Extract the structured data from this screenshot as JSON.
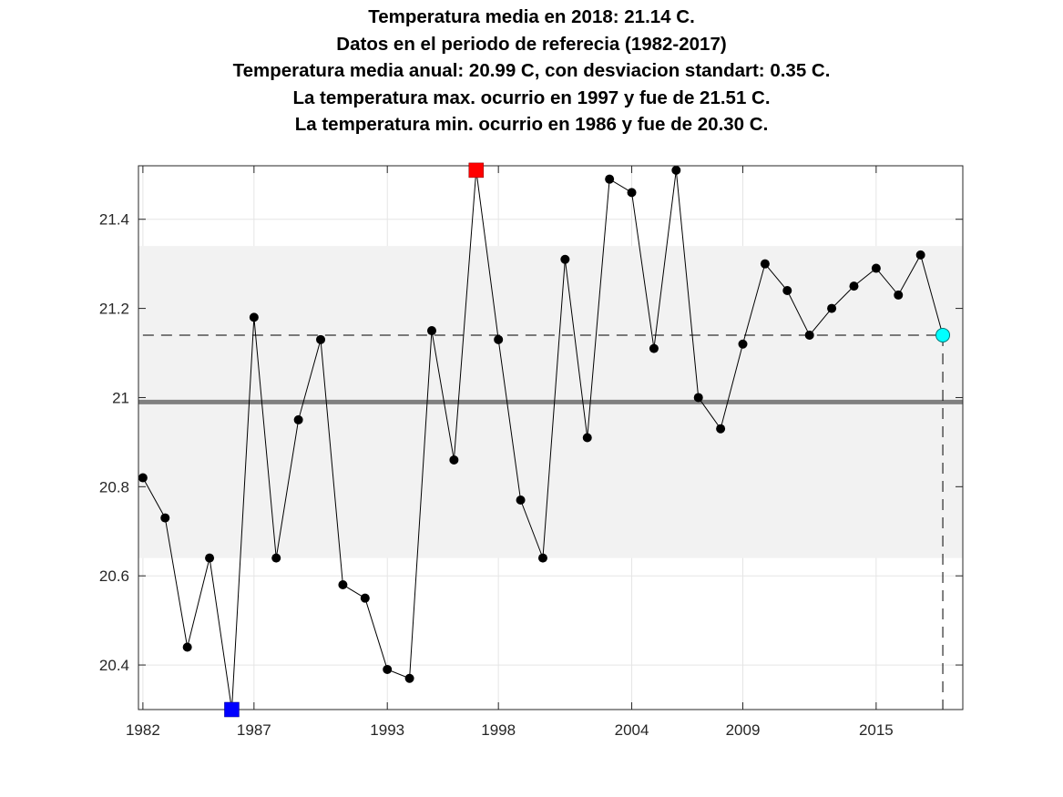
{
  "titles": [
    "Temperatura media en 2018: 21.14 C.",
    "Datos en el periodo de referecia (1982-2017)",
    "Temperatura media anual: 20.99 C, con desviacion standart: 0.35 C.",
    "La temperatura max. ocurrio en 1997 y fue de 21.51 C.",
    "La temperatura min. ocurrio en 1986 y fue de 20.30 C."
  ],
  "chart_data": {
    "type": "line",
    "x": [
      1982,
      1983,
      1984,
      1985,
      1986,
      1987,
      1988,
      1989,
      1990,
      1991,
      1992,
      1993,
      1994,
      1995,
      1996,
      1997,
      1998,
      1999,
      2000,
      2001,
      2002,
      2003,
      2004,
      2005,
      2006,
      2007,
      2008,
      2009,
      2010,
      2011,
      2012,
      2013,
      2014,
      2015,
      2016,
      2017
    ],
    "series": [
      {
        "values": [
          20.82,
          20.73,
          20.44,
          20.64,
          20.3,
          21.18,
          20.64,
          20.95,
          21.13,
          20.58,
          20.55,
          20.39,
          20.37,
          21.15,
          20.86,
          21.51,
          21.13,
          20.77,
          20.64,
          21.31,
          20.91,
          21.49,
          21.46,
          21.11,
          21.51,
          21.0,
          20.93,
          21.12,
          21.3,
          21.24,
          21.14,
          21.2,
          21.25,
          21.29,
          21.23,
          21.32
        ]
      }
    ],
    "current": {
      "year": 2018,
      "value": 21.14
    },
    "mean": 20.99,
    "std": 0.35,
    "max": {
      "year": 1997,
      "value": 21.51
    },
    "min": {
      "year": 1986,
      "value": 20.3
    },
    "xlim": [
      1981.8,
      2018.9
    ],
    "ylim": [
      20.3,
      21.52
    ],
    "xticks": [
      1982,
      1987,
      1993,
      1998,
      2004,
      2009,
      2015
    ],
    "xtick_labels": [
      "1982",
      "1987",
      "1993",
      "1998",
      "2004",
      "2009",
      "2015"
    ],
    "yticks": [
      20.4,
      20.6,
      20.8,
      21,
      21.2,
      21.4
    ],
    "ytick_labels": [
      "20.4",
      "20.6",
      "20.8",
      "21",
      "21.2",
      "21.4"
    ],
    "grid": true,
    "colors": {
      "line": "#000000",
      "points": "#000000",
      "mean_line": "#808080",
      "std_band": "#f2f2f2",
      "max_marker": "#ff0000",
      "min_marker": "#0000ff",
      "current_marker": "#00ffff",
      "grid": "#e5e5e5"
    }
  }
}
